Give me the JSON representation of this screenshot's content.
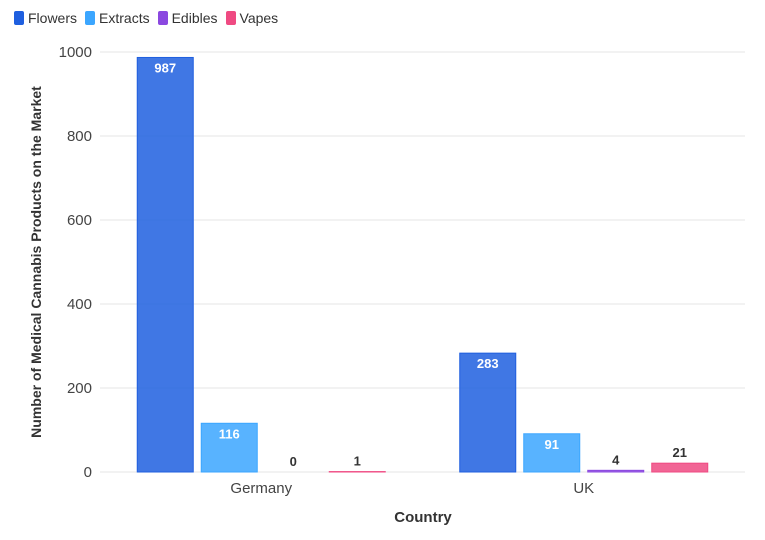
{
  "chart_data": {
    "type": "bar",
    "categories": [
      "Germany",
      "UK"
    ],
    "series": [
      {
        "name": "Flowers",
        "color": "#1f5fdf",
        "values": [
          987,
          283
        ]
      },
      {
        "name": "Extracts",
        "color": "#3ba6ff",
        "values": [
          116,
          91
        ]
      },
      {
        "name": "Edibles",
        "color": "#8b48e0",
        "values": [
          0,
          4
        ]
      },
      {
        "name": "Vapes",
        "color": "#ef4a82",
        "values": [
          1,
          21
        ]
      }
    ],
    "xlabel": "Country",
    "ylabel": "Number of Medical Cannabis Products on the Market",
    "ylim": [
      0,
      1000
    ],
    "yticks": [
      0,
      200,
      400,
      600,
      800,
      1000
    ],
    "legend_position": "top-left",
    "grid": true
  }
}
